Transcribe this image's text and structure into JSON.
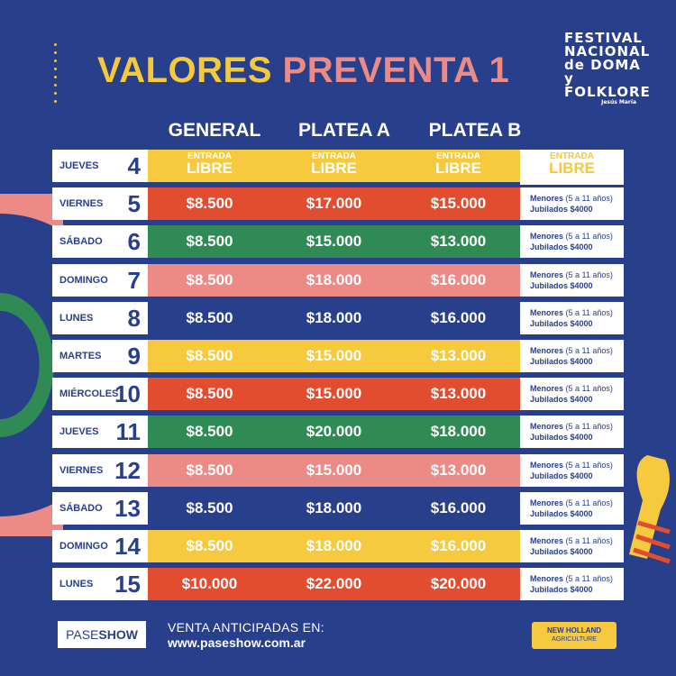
{
  "title": {
    "part1": "VALORES",
    "part2": "PREVENTA 1"
  },
  "logo": {
    "lines": [
      "FESTIVAL",
      "NACIONAL",
      "de DOMA y",
      "FOLKLORE"
    ],
    "sub": "Jesús María"
  },
  "columns": [
    "GENERAL",
    "PLATEA A",
    "PLATEA B"
  ],
  "entrada_libre": {
    "line1": "ENTRADA",
    "line2": "LIBRE"
  },
  "discount": {
    "menores": "Menores",
    "age": "(5 a 11 años)",
    "jubilados": "Jubilados",
    "price": "$4000"
  },
  "rows": [
    {
      "day": "JUEVES",
      "date": "4",
      "general": "",
      "platea_a": "",
      "platea_b": "",
      "color": "#f6c93e",
      "libre": true
    },
    {
      "day": "VIERNES",
      "date": "5",
      "general": "$8.500",
      "platea_a": "$17.000",
      "platea_b": "$15.000",
      "color": "#e24d30"
    },
    {
      "day": "SÁBADO",
      "date": "6",
      "general": "$8.500",
      "platea_a": "$15.000",
      "platea_b": "$13.000",
      "color": "#2f8a54"
    },
    {
      "day": "DOMINGO",
      "date": "7",
      "general": "$8.500",
      "platea_a": "$18.000",
      "platea_b": "$16.000",
      "color": "#ec8a86"
    },
    {
      "day": "LUNES",
      "date": "8",
      "general": "$8.500",
      "platea_a": "$18.000",
      "platea_b": "$16.000",
      "color": "#283f8c"
    },
    {
      "day": "MARTES",
      "date": "9",
      "general": "$8.500",
      "platea_a": "$15.000",
      "platea_b": "$13.000",
      "color": "#f6c93e"
    },
    {
      "day": "MIÉRCOLES",
      "date": "10",
      "general": "$8.500",
      "platea_a": "$15.000",
      "platea_b": "$13.000",
      "color": "#e24d30"
    },
    {
      "day": "JUEVES",
      "date": "11",
      "general": "$8.500",
      "platea_a": "$20.000",
      "platea_b": "$18.000",
      "color": "#2f8a54"
    },
    {
      "day": "VIERNES",
      "date": "12",
      "general": "$8.500",
      "platea_a": "$15.000",
      "platea_b": "$13.000",
      "color": "#ec8a86"
    },
    {
      "day": "SÁBADO",
      "date": "13",
      "general": "$8.500",
      "platea_a": "$18.000",
      "platea_b": "$16.000",
      "color": "#283f8c"
    },
    {
      "day": "DOMINGO",
      "date": "14",
      "general": "$8.500",
      "platea_a": "$18.000",
      "platea_b": "$16.000",
      "color": "#f6c93e"
    },
    {
      "day": "LUNES",
      "date": "15",
      "general": "$10.000",
      "platea_a": "$22.000",
      "platea_b": "$20.000",
      "color": "#e24d30"
    }
  ],
  "footer": {
    "paseshow_a": "PASE",
    "paseshow_b": "SHOW",
    "venta_label": "VENTA ANTICIPADAS EN:",
    "venta_url": "www.paseshow.com.ar",
    "sponsor_name": "NEW HOLLAND",
    "sponsor_sub": "AGRICULTURE"
  }
}
